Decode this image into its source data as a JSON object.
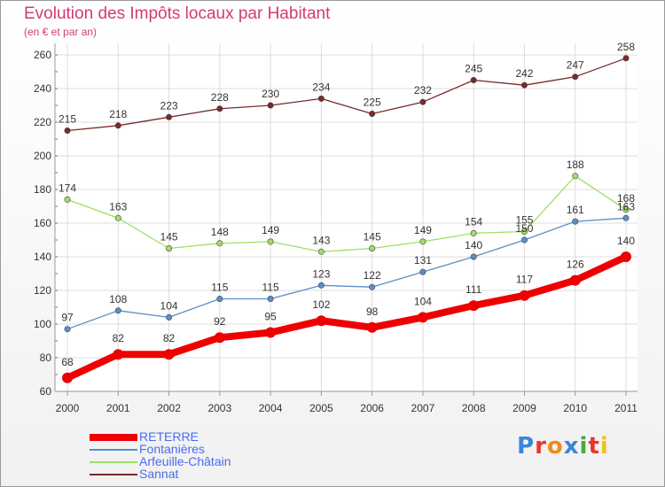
{
  "page": {
    "title": "Evolution des Impôts locaux par Habitant",
    "subtitle": "(en € et par an)",
    "logo_text": "Proxiti",
    "logo_colors": [
      "#3a86d8",
      "#e8352c",
      "#f08a1c",
      "#3a86d8",
      "#49a83b",
      "#e8352c",
      "#f0c21c"
    ]
  },
  "chart_data": {
    "type": "line",
    "title": "Evolution des Impôts locaux par Habitant",
    "subtitle": "(en € et par an)",
    "xlabel": "",
    "ylabel": "",
    "x": [
      "2000",
      "2001",
      "2002",
      "2003",
      "2004",
      "2005",
      "2006",
      "2007",
      "2008",
      "2009",
      "2010",
      "2011"
    ],
    "ylim": [
      60,
      260
    ],
    "yticks": [
      "60",
      "80",
      "100",
      "120",
      "140",
      "160",
      "180",
      "200",
      "220",
      "240",
      "260"
    ],
    "grid": true,
    "legend_position": "bottom-left",
    "series": [
      {
        "name": "RETERRE",
        "color": "#ee0000",
        "style": "thick",
        "values": [
          68,
          82,
          82,
          92,
          95,
          102,
          98,
          104,
          111,
          117,
          126,
          140
        ],
        "labels": [
          "68",
          "82",
          "82",
          "92",
          "95",
          "102",
          "98",
          "104",
          "111",
          "117",
          "126",
          "140"
        ]
      },
      {
        "name": "Fontanières",
        "color": "#5a8fc8",
        "style": "thin",
        "values": [
          97,
          108,
          104,
          115,
          115,
          123,
          122,
          131,
          140,
          150,
          161,
          163
        ],
        "labels": [
          "97",
          "108",
          "104",
          "115",
          "115",
          "123",
          "122",
          "131",
          "140",
          "150",
          "161",
          "163"
        ]
      },
      {
        "name": "Arfeuille-Châtain",
        "color": "#9ee064",
        "style": "thin",
        "values": [
          174,
          163,
          145,
          148,
          149,
          143,
          145,
          149,
          154,
          155,
          188,
          168
        ],
        "labels": [
          "174",
          "163",
          "145",
          "148",
          "149",
          "143",
          "145",
          "149",
          "154",
          "155",
          "188",
          "168"
        ]
      },
      {
        "name": "Sannat",
        "color": "#7a2a2a",
        "style": "thin",
        "values": [
          215,
          218,
          223,
          228,
          230,
          234,
          225,
          232,
          245,
          242,
          247,
          258
        ],
        "labels": [
          "215",
          "218",
          "223",
          "228",
          "230",
          "234",
          "225",
          "232",
          "245",
          "242",
          "247",
          "258"
        ]
      }
    ]
  }
}
